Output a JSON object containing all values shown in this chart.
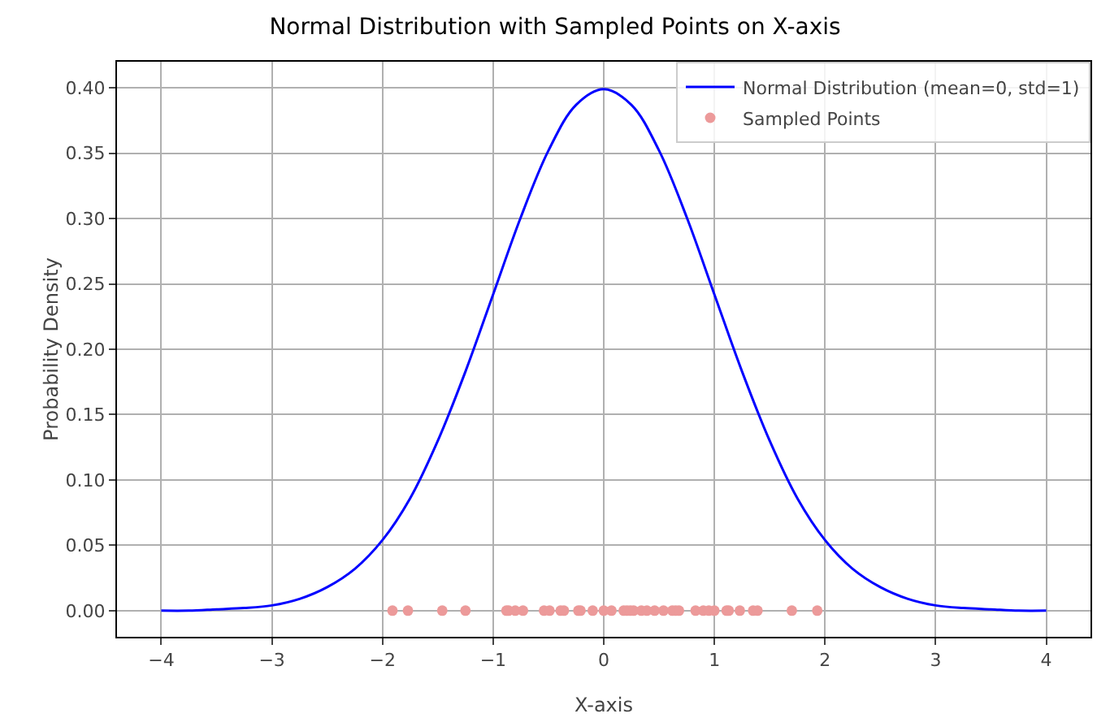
{
  "chart_data": {
    "type": "line",
    "title": "Normal Distribution with Sampled Points on X-axis",
    "xlabel": "X-axis",
    "ylabel": "Probability Density",
    "xlim": [
      -4.4,
      4.4
    ],
    "xticks": [
      {
        "value": -4,
        "label": "−4"
      },
      {
        "value": -3,
        "label": "−3"
      },
      {
        "value": -2,
        "label": "−2"
      },
      {
        "value": -1,
        "label": "−1"
      },
      0,
      1,
      2,
      3,
      4
    ],
    "ylim": [
      -0.02,
      0.42
    ],
    "yticks": [
      {
        "value": 0,
        "label": "0.00"
      },
      {
        "value": 0.05,
        "label": "0.05"
      },
      {
        "value": 0.1,
        "label": "0.10"
      },
      {
        "value": 0.15,
        "label": "0.15"
      },
      {
        "value": 0.2,
        "label": "0.20"
      },
      {
        "value": 0.25,
        "label": "0.25"
      },
      {
        "value": 0.3,
        "label": "0.30"
      },
      {
        "value": 0.35,
        "label": "0.35"
      },
      {
        "value": 0.4,
        "label": "0.40"
      }
    ],
    "grid": true,
    "legend": "top right",
    "series": [
      {
        "name": "Normal Distribution (mean=0, std=1)",
        "color": "#0000ff",
        "marker": "none",
        "line_style": "solid",
        "x": [
          -4,
          -3.75,
          -3.5,
          -3.25,
          -3,
          -2.75,
          -2.5,
          -2.25,
          -2,
          -1.75,
          -1.5,
          -1.25,
          -1,
          -0.75,
          -0.5,
          -0.25,
          0,
          0.25,
          0.5,
          0.75,
          1,
          1.25,
          1.5,
          1.75,
          2,
          2.25,
          2.5,
          2.75,
          3,
          3.25,
          3.5,
          3.75,
          4
        ],
        "values": [
          0.0,
          0.0,
          0.001,
          0.002,
          0.004,
          0.009,
          0.018,
          0.032,
          0.054,
          0.086,
          0.13,
          0.183,
          0.242,
          0.301,
          0.352,
          0.387,
          0.399,
          0.387,
          0.352,
          0.301,
          0.242,
          0.183,
          0.13,
          0.086,
          0.054,
          0.032,
          0.018,
          0.009,
          0.004,
          0.002,
          0.001,
          0.0,
          0.0
        ]
      },
      {
        "name": "Sampled Points",
        "type": "scatter",
        "color": "#ec9a9a",
        "marker": "circle",
        "x": [
          -1.91,
          -1.77,
          -1.46,
          -1.25,
          -0.88,
          -0.86,
          -0.8,
          -0.73,
          -0.54,
          -0.49,
          -0.39,
          -0.36,
          -0.23,
          -0.21,
          -0.1,
          0.0,
          0.07,
          0.18,
          0.21,
          0.24,
          0.27,
          0.34,
          0.39,
          0.46,
          0.54,
          0.62,
          0.65,
          0.68,
          0.83,
          0.9,
          0.95,
          1.0,
          1.11,
          1.13,
          1.23,
          1.35,
          1.39,
          1.7,
          1.93
        ],
        "values": [
          0,
          0,
          0,
          0,
          0,
          0,
          0,
          0,
          0,
          0,
          0,
          0,
          0,
          0,
          0,
          0,
          0,
          0,
          0,
          0,
          0,
          0,
          0,
          0,
          0,
          0,
          0,
          0,
          0,
          0,
          0,
          0,
          0,
          0,
          0,
          0,
          0,
          0,
          0
        ]
      }
    ]
  }
}
